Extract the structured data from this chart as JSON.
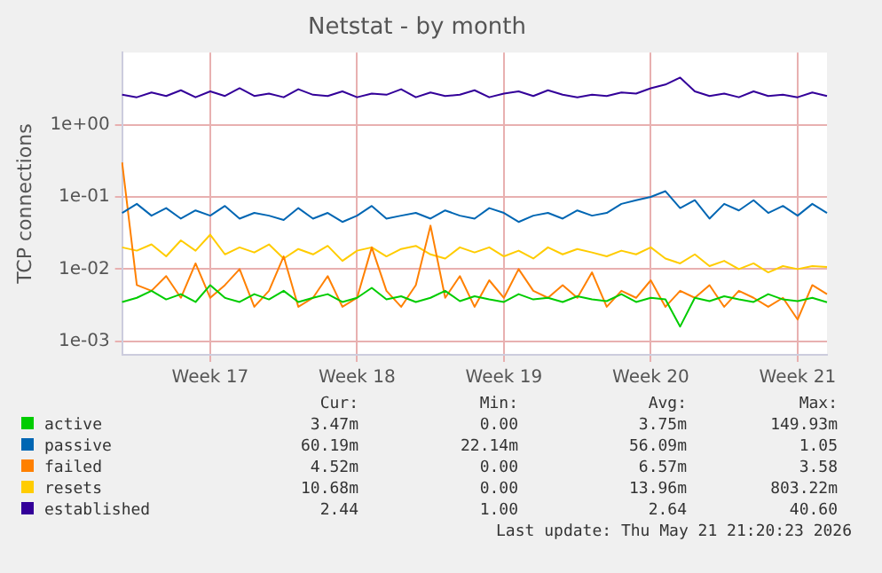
{
  "chart_data": {
    "type": "line",
    "title": "Netstat - by month",
    "ylabel": "TCP connections",
    "log": "y",
    "grid": true,
    "legend": "bottom",
    "marker": "none",
    "line_style": "solid",
    "categories": [
      null,
      null,
      null,
      null,
      null,
      null,
      "Week 17",
      null,
      null,
      null,
      null,
      null,
      null,
      null,
      null,
      null,
      "Week 18",
      null,
      null,
      null,
      null,
      null,
      null,
      null,
      null,
      null,
      "Week 19",
      null,
      null,
      null,
      null,
      null,
      null,
      null,
      null,
      null,
      "Week 20",
      null,
      null,
      null,
      null,
      null,
      null,
      null,
      null,
      null,
      "Week 21",
      null,
      null
    ],
    "ylim": [
      0.00065,
      10
    ],
    "yticks": [
      {
        "value": 0.001,
        "label": "1e-03"
      },
      {
        "value": 0.01,
        "label": "1e-02"
      },
      {
        "value": 0.1,
        "label": "1e-01"
      },
      {
        "value": 1,
        "label": "1e+00"
      }
    ],
    "series": [
      {
        "name": "active",
        "color": "#00cc00",
        "values": [
          0.0035,
          0.004,
          0.005,
          0.0038,
          0.0045,
          0.0035,
          0.006,
          0.004,
          0.0035,
          0.0045,
          0.0038,
          0.005,
          0.0035,
          0.004,
          0.0045,
          0.0035,
          0.004,
          0.0055,
          0.0038,
          0.0042,
          0.0035,
          0.004,
          0.005,
          0.0036,
          0.0042,
          0.0038,
          0.0035,
          0.0045,
          0.0038,
          0.004,
          0.0035,
          0.0042,
          0.0038,
          0.0036,
          0.0045,
          0.0035,
          0.004,
          0.0038,
          0.0016,
          0.004,
          0.0036,
          0.0042,
          0.0038,
          0.0035,
          0.0045,
          0.0038,
          0.0036,
          0.004,
          0.00347
        ]
      },
      {
        "name": "passive",
        "color": "#0066b3",
        "values": [
          0.06,
          0.08,
          0.055,
          0.07,
          0.05,
          0.065,
          0.055,
          0.075,
          0.05,
          0.06,
          0.055,
          0.048,
          0.07,
          0.05,
          0.06,
          0.045,
          0.055,
          0.075,
          0.05,
          0.055,
          0.06,
          0.05,
          0.065,
          0.055,
          0.05,
          0.07,
          0.06,
          0.045,
          0.055,
          0.06,
          0.05,
          0.065,
          0.055,
          0.06,
          0.08,
          0.09,
          0.1,
          0.12,
          0.07,
          0.09,
          0.05,
          0.08,
          0.065,
          0.09,
          0.06,
          0.075,
          0.055,
          0.08,
          0.06
        ]
      },
      {
        "name": "failed",
        "color": "#ff8000",
        "values": [
          0.3,
          0.006,
          0.005,
          0.008,
          0.004,
          0.012,
          0.004,
          0.006,
          0.01,
          0.003,
          0.005,
          0.015,
          0.003,
          0.004,
          0.008,
          0.003,
          0.004,
          0.02,
          0.005,
          0.003,
          0.006,
          0.04,
          0.004,
          0.008,
          0.003,
          0.007,
          0.004,
          0.01,
          0.005,
          0.004,
          0.006,
          0.004,
          0.009,
          0.003,
          0.005,
          0.004,
          0.007,
          0.003,
          0.005,
          0.004,
          0.006,
          0.003,
          0.005,
          0.004,
          0.003,
          0.004,
          0.002,
          0.006,
          0.0045
        ]
      },
      {
        "name": "resets",
        "color": "#ffcc00",
        "values": [
          0.02,
          0.018,
          0.022,
          0.015,
          0.025,
          0.018,
          0.03,
          0.016,
          0.02,
          0.017,
          0.022,
          0.014,
          0.019,
          0.016,
          0.021,
          0.013,
          0.018,
          0.02,
          0.015,
          0.019,
          0.021,
          0.016,
          0.014,
          0.02,
          0.017,
          0.02,
          0.015,
          0.018,
          0.014,
          0.02,
          0.016,
          0.019,
          0.017,
          0.015,
          0.018,
          0.016,
          0.02,
          0.014,
          0.012,
          0.016,
          0.011,
          0.013,
          0.01,
          0.012,
          0.009,
          0.011,
          0.01,
          0.011,
          0.0107
        ]
      },
      {
        "name": "established",
        "color": "#330099",
        "values": [
          2.6,
          2.4,
          2.8,
          2.5,
          3.0,
          2.4,
          2.9,
          2.5,
          3.2,
          2.5,
          2.7,
          2.4,
          3.1,
          2.6,
          2.5,
          2.9,
          2.4,
          2.7,
          2.6,
          3.1,
          2.4,
          2.8,
          2.5,
          2.6,
          3.0,
          2.4,
          2.7,
          2.9,
          2.5,
          3.0,
          2.6,
          2.4,
          2.6,
          2.5,
          2.8,
          2.7,
          3.2,
          3.6,
          4.5,
          2.9,
          2.5,
          2.7,
          2.4,
          2.9,
          2.5,
          2.6,
          2.4,
          2.8,
          2.5
        ]
      }
    ],
    "annotations": [
      "Cur:",
      "Min:",
      "Avg:",
      "Max:",
      "3.47m",
      "0.00",
      "3.75m",
      "149.93m",
      "60.19m",
      "22.14m",
      "56.09m",
      "1.05",
      "4.52m",
      "0.00",
      "6.57m",
      "3.58",
      "10.68m",
      "0.00",
      "13.96m",
      "803.22m",
      "2.44",
      "1.00",
      "2.64",
      "40.60",
      "Last update: Thu May 21 21:20:23 2026"
    ]
  }
}
